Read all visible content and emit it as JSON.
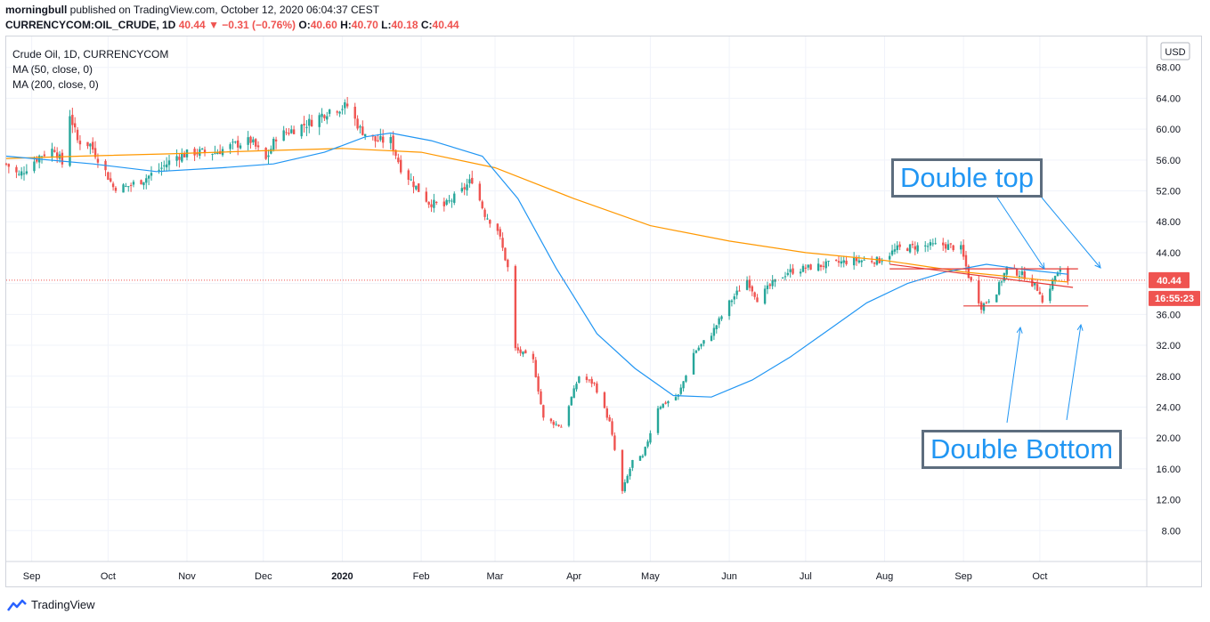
{
  "header": {
    "author": "morningbull",
    "published": "published on TradingView.com, October 12, 2020 06:04:37 CEST",
    "symbol": "CURRENCYCOM:OIL_CRUDE, 1D",
    "last": "40.44",
    "change": "−0.31 (−0.76%)",
    "o_label": "O:",
    "o": "40.60",
    "h_label": "H:",
    "h": "40.70",
    "l_label": "L:",
    "l": "40.18",
    "c_label": "C:",
    "c": "40.44"
  },
  "legend": {
    "title": "Crude Oil, 1D, CURRENCYCOM",
    "ma50": "MA (50, close, 0)",
    "ma200": "MA (200, close, 0)"
  },
  "price_scale": {
    "currency": "USD",
    "last_price": "40.44",
    "countdown": "16:55:23"
  },
  "annotations": {
    "double_top": "Double top",
    "double_bottom": "Double Bottom"
  },
  "footer": {
    "brand": "TradingView"
  },
  "colors": {
    "up": "#26a69a",
    "down": "#ef5350",
    "ma50": "#2196f3",
    "ma200": "#ff9800",
    "level_line": "#e53935",
    "annotation_text": "#2196f3",
    "annotation_border": "#5d6d7e"
  },
  "chart_data": {
    "type": "candlestick",
    "ylim": [
      4,
      72
    ],
    "yticks": [
      8,
      12,
      16,
      20,
      24,
      28,
      32,
      36,
      40,
      44,
      48,
      52,
      56,
      60,
      64,
      68
    ],
    "x_ticks": [
      {
        "label": "Sep",
        "date": "2019-09-01"
      },
      {
        "label": "Oct",
        "date": "2019-10-01"
      },
      {
        "label": "Nov",
        "date": "2019-11-01"
      },
      {
        "label": "Dec",
        "date": "2019-12-01"
      },
      {
        "label": "2020",
        "date": "2020-01-01"
      },
      {
        "label": "Feb",
        "date": "2020-02-01"
      },
      {
        "label": "Mar",
        "date": "2020-03-01"
      },
      {
        "label": "Apr",
        "date": "2020-04-01"
      },
      {
        "label": "May",
        "date": "2020-05-01"
      },
      {
        "label": "Jun",
        "date": "2020-06-01"
      },
      {
        "label": "Jul",
        "date": "2020-07-01"
      },
      {
        "label": "Aug",
        "date": "2020-08-01"
      },
      {
        "label": "Sep",
        "date": "2020-09-01"
      },
      {
        "label": "Oct",
        "date": "2020-10-01"
      }
    ],
    "x_range": [
      "2019-08-22",
      "2020-11-12"
    ],
    "close_path": [
      [
        "2019-08-22",
        55.5
      ],
      [
        "2019-08-27",
        54.0
      ],
      [
        "2019-08-30",
        55.0
      ],
      [
        "2019-09-04",
        56.5
      ],
      [
        "2019-09-10",
        57.5
      ],
      [
        "2019-09-13",
        55.5
      ],
      [
        "2019-09-16",
        62.0
      ],
      [
        "2019-09-19",
        58.5
      ],
      [
        "2019-09-24",
        58.0
      ],
      [
        "2019-09-30",
        54.5
      ],
      [
        "2019-10-03",
        52.5
      ],
      [
        "2019-10-08",
        52.5
      ],
      [
        "2019-10-15",
        53.5
      ],
      [
        "2019-10-22",
        55.0
      ],
      [
        "2019-10-28",
        56.5
      ],
      [
        "2019-11-04",
        57.0
      ],
      [
        "2019-11-12",
        57.0
      ],
      [
        "2019-11-20",
        58.0
      ],
      [
        "2019-11-26",
        58.5
      ],
      [
        "2019-12-02",
        56.0
      ],
      [
        "2019-12-06",
        59.0
      ],
      [
        "2019-12-13",
        60.0
      ],
      [
        "2019-12-20",
        61.0
      ],
      [
        "2019-12-27",
        62.5
      ],
      [
        "2020-01-03",
        63.0
      ],
      [
        "2020-01-08",
        60.0
      ],
      [
        "2020-01-14",
        58.5
      ],
      [
        "2020-01-20",
        58.5
      ],
      [
        "2020-01-24",
        55.0
      ],
      [
        "2020-01-30",
        52.5
      ],
      [
        "2020-02-04",
        50.5
      ],
      [
        "2020-02-10",
        50.0
      ],
      [
        "2020-02-17",
        52.0
      ],
      [
        "2020-02-21",
        53.5
      ],
      [
        "2020-02-26",
        49.0
      ],
      [
        "2020-03-02",
        47.0
      ],
      [
        "2020-03-06",
        42.0
      ],
      [
        "2020-03-09",
        31.5
      ],
      [
        "2020-03-16",
        30.0
      ],
      [
        "2020-03-20",
        22.5
      ],
      [
        "2020-03-27",
        21.5
      ],
      [
        "2020-04-03",
        28.0
      ],
      [
        "2020-04-09",
        27.0
      ],
      [
        "2020-04-15",
        22.0
      ],
      [
        "2020-04-20",
        13.0
      ],
      [
        "2020-04-24",
        17.0
      ],
      [
        "2020-04-28",
        17.5
      ],
      [
        "2020-05-04",
        24.0
      ],
      [
        "2020-05-12",
        25.5
      ],
      [
        "2020-05-18",
        31.0
      ],
      [
        "2020-05-25",
        33.5
      ],
      [
        "2020-06-01",
        37.5
      ],
      [
        "2020-06-08",
        40.5
      ],
      [
        "2020-06-12",
        38.0
      ],
      [
        "2020-06-18",
        40.0
      ],
      [
        "2020-06-24",
        41.5
      ],
      [
        "2020-07-01",
        42.0
      ],
      [
        "2020-07-10",
        42.5
      ],
      [
        "2020-07-20",
        43.0
      ],
      [
        "2020-07-30",
        43.0
      ],
      [
        "2020-08-06",
        44.5
      ],
      [
        "2020-08-14",
        44.8
      ],
      [
        "2020-08-24",
        45.0
      ],
      [
        "2020-08-31",
        44.5
      ],
      [
        "2020-09-03",
        41.0
      ],
      [
        "2020-09-08",
        37.0
      ],
      [
        "2020-09-14",
        39.0
      ],
      [
        "2020-09-18",
        42.0
      ],
      [
        "2020-09-25",
        41.0
      ],
      [
        "2020-10-01",
        39.0
      ],
      [
        "2020-10-02",
        37.5
      ],
      [
        "2020-10-07",
        41.0
      ],
      [
        "2020-10-09",
        41.5
      ],
      [
        "2020-10-12",
        40.44
      ]
    ],
    "ma50_path": [
      [
        "2019-08-22",
        56.5
      ],
      [
        "2019-09-25",
        55.5
      ],
      [
        "2019-10-20",
        54.5
      ],
      [
        "2019-11-15",
        55.0
      ],
      [
        "2019-12-05",
        55.5
      ],
      [
        "2019-12-25",
        57.0
      ],
      [
        "2020-01-10",
        59.0
      ],
      [
        "2020-01-20",
        59.5
      ],
      [
        "2020-02-05",
        58.5
      ],
      [
        "2020-02-25",
        56.5
      ],
      [
        "2020-03-10",
        51.0
      ],
      [
        "2020-03-25",
        42.0
      ],
      [
        "2020-04-10",
        33.5
      ],
      [
        "2020-04-25",
        29.0
      ],
      [
        "2020-05-10",
        25.5
      ],
      [
        "2020-05-25",
        25.3
      ],
      [
        "2020-06-10",
        27.5
      ],
      [
        "2020-06-25",
        30.5
      ],
      [
        "2020-07-10",
        34.0
      ],
      [
        "2020-07-25",
        37.5
      ],
      [
        "2020-08-10",
        40.0
      ],
      [
        "2020-08-25",
        41.5
      ],
      [
        "2020-09-10",
        42.5
      ],
      [
        "2020-09-25",
        41.8
      ],
      [
        "2020-10-12",
        41.2
      ]
    ],
    "ma200_path": [
      [
        "2019-08-22",
        56.2
      ],
      [
        "2019-09-20",
        56.5
      ],
      [
        "2019-10-25",
        56.8
      ],
      [
        "2019-12-01",
        57.2
      ],
      [
        "2020-01-01",
        57.5
      ],
      [
        "2020-02-01",
        57.0
      ],
      [
        "2020-03-01",
        55.0
      ],
      [
        "2020-04-01",
        51.0
      ],
      [
        "2020-05-01",
        47.5
      ],
      [
        "2020-06-01",
        45.5
      ],
      [
        "2020-07-01",
        44.0
      ],
      [
        "2020-08-01",
        43.0
      ],
      [
        "2020-09-01",
        41.5
      ],
      [
        "2020-10-01",
        40.5
      ],
      [
        "2020-10-12",
        40.2
      ]
    ],
    "levels": [
      {
        "from": "2020-08-03",
        "to": "2020-10-16",
        "price": 41.9
      },
      {
        "from": "2020-09-01",
        "to": "2020-10-20",
        "price": 37.1
      },
      {
        "from": "2020-08-03",
        "to": "2020-10-14",
        "price": 42.5,
        "to_price": 39.5
      }
    ],
    "last_price": 40.44
  }
}
